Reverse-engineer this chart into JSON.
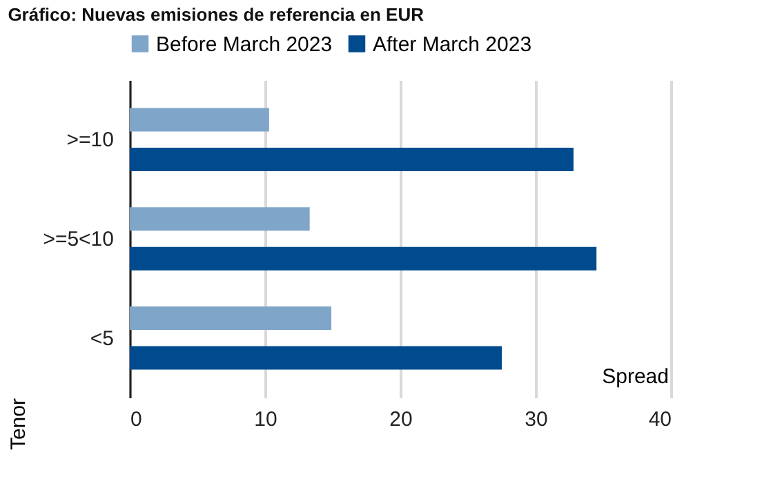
{
  "chart_data": {
    "type": "bar",
    "orientation": "horizontal",
    "title": "Gráfico: Nuevas emisiones de referencia en EUR",
    "xlabel": "Spread",
    "ylabel": "Tenor",
    "categories": [
      ">=10",
      ">=5<10",
      "<5"
    ],
    "series": [
      {
        "name": "Before March 2023",
        "color": "#7fa6c9",
        "values": [
          10.3,
          13.3,
          14.9
        ]
      },
      {
        "name": "After March 2023",
        "color": "#004b8d",
        "values": [
          32.8,
          34.5,
          27.5
        ]
      }
    ],
    "xlim": [
      0,
      40
    ],
    "xticks": [
      0,
      10,
      20,
      30,
      40
    ],
    "grid": "x",
    "legend": "top"
  }
}
